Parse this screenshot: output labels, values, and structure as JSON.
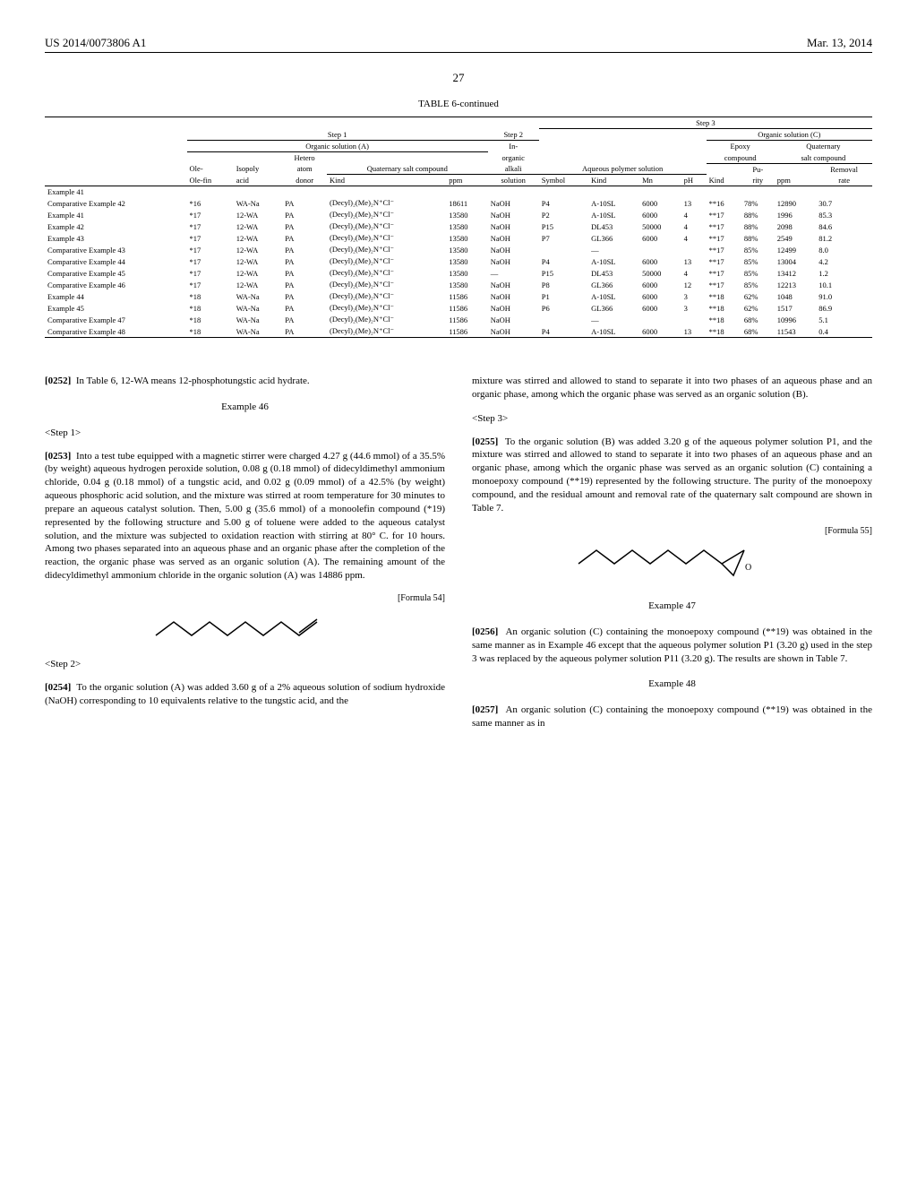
{
  "header": {
    "left": "US 2014/0073806 A1",
    "right": "Mar. 13, 2014"
  },
  "page_number": "27",
  "table": {
    "title": "TABLE 6-continued",
    "step1_label": "Step 1",
    "step2_label": "Step 2",
    "step3_label": "Step 3",
    "org_a_label": "Organic solution (A)",
    "org_c_label": "Organic solution (C)",
    "inorganic_label": "In-organic",
    "epoxy_label": "Epoxy compound",
    "quat_label": "Quaternary salt compound",
    "alkali_label": "alkali",
    "aqueous_label": "Aqueous polymer solution",
    "hetero_label": "Hetero atom",
    "quat_salt_label": "Quaternary salt compound",
    "col_olefin": "Ole-fin",
    "col_isopoly": "Isopoly acid",
    "col_donor": "donor",
    "col_kind1": "Kind",
    "col_ppm1": "ppm",
    "col_solution": "solution",
    "col_symbol": "Symbol",
    "col_kind2": "Kind",
    "col_mn": "Mn",
    "col_ph": "pH",
    "col_kind3": "Kind",
    "col_purity": "Pu-rity",
    "col_ppm2": "ppm",
    "col_removal": "Removal rate",
    "rows": [
      {
        "name": "Example 41",
        "olefin": "",
        "isopoly": "",
        "donor": "",
        "kind": "",
        "ppm": "",
        "sol": "",
        "sym": "",
        "kind2": "",
        "mn": "",
        "ph": "",
        "kind3": "",
        "purity": "",
        "ppm2": "",
        "removal": ""
      },
      {
        "name": "Comparative Example 42",
        "olefin": "*16",
        "isopoly": "WA-Na",
        "donor": "PA",
        "kind": "(Decyl)₂(Me)₂N⁺Cl⁻",
        "ppm": "18611",
        "sol": "NaOH",
        "sym": "P4",
        "kind2": "A-10SL",
        "mn": "6000",
        "ph": "13",
        "kind3": "**16",
        "purity": "78%",
        "ppm2": "12890",
        "removal": "30.7"
      },
      {
        "name": "Example 41",
        "olefin": "*17",
        "isopoly": "12-WA",
        "donor": "PA",
        "kind": "(Decyl)₂(Me)₂N⁺Cl⁻",
        "ppm": "13580",
        "sol": "NaOH",
        "sym": "P2",
        "kind2": "A-10SL",
        "mn": "6000",
        "ph": "4",
        "kind3": "**17",
        "purity": "88%",
        "ppm2": "1996",
        "removal": "85.3"
      },
      {
        "name": "Example 42",
        "olefin": "*17",
        "isopoly": "12-WA",
        "donor": "PA",
        "kind": "(Decyl)₂(Me)₂N⁺Cl⁻",
        "ppm": "13580",
        "sol": "NaOH",
        "sym": "P15",
        "kind2": "DL453",
        "mn": "50000",
        "ph": "4",
        "kind3": "**17",
        "purity": "88%",
        "ppm2": "2098",
        "removal": "84.6"
      },
      {
        "name": "Example 43",
        "olefin": "*17",
        "isopoly": "12-WA",
        "donor": "PA",
        "kind": "(Decyl)₂(Me)₂N⁺Cl⁻",
        "ppm": "13580",
        "sol": "NaOH",
        "sym": "P7",
        "kind2": "GL366",
        "mn": "6000",
        "ph": "4",
        "kind3": "**17",
        "purity": "88%",
        "ppm2": "2549",
        "removal": "81.2"
      },
      {
        "name": "Comparative Example 43",
        "olefin": "*17",
        "isopoly": "12-WA",
        "donor": "PA",
        "kind": "(Decyl)₂(Me)₂N⁺Cl⁻",
        "ppm": "13580",
        "sol": "NaOH",
        "sym": "",
        "kind2": "—",
        "mn": "",
        "ph": "",
        "kind3": "**17",
        "purity": "85%",
        "ppm2": "12499",
        "removal": "8.0"
      },
      {
        "name": "Comparative Example 44",
        "olefin": "*17",
        "isopoly": "12-WA",
        "donor": "PA",
        "kind": "(Decyl)₂(Me)₂N⁺Cl⁻",
        "ppm": "13580",
        "sol": "NaOH",
        "sym": "P4",
        "kind2": "A-10SL",
        "mn": "6000",
        "ph": "13",
        "kind3": "**17",
        "purity": "85%",
        "ppm2": "13004",
        "removal": "4.2"
      },
      {
        "name": "Comparative Example 45",
        "olefin": "*17",
        "isopoly": "12-WA",
        "donor": "PA",
        "kind": "(Decyl)₂(Me)₂N⁺Cl⁻",
        "ppm": "13580",
        "sol": "—",
        "sym": "P15",
        "kind2": "DL453",
        "mn": "50000",
        "ph": "4",
        "kind3": "**17",
        "purity": "85%",
        "ppm2": "13412",
        "removal": "1.2"
      },
      {
        "name": "Comparative Example 46",
        "olefin": "*17",
        "isopoly": "12-WA",
        "donor": "PA",
        "kind": "(Decyl)₂(Me)₂N⁺Cl⁻",
        "ppm": "13580",
        "sol": "NaOH",
        "sym": "P8",
        "kind2": "GL366",
        "mn": "6000",
        "ph": "12",
        "kind3": "**17",
        "purity": "85%",
        "ppm2": "12213",
        "removal": "10.1"
      },
      {
        "name": "Example 44",
        "olefin": "*18",
        "isopoly": "WA-Na",
        "donor": "PA",
        "kind": "(Decyl)₂(Me)₂N⁺Cl⁻",
        "ppm": "11586",
        "sol": "NaOH",
        "sym": "P1",
        "kind2": "A-10SL",
        "mn": "6000",
        "ph": "3",
        "kind3": "**18",
        "purity": "62%",
        "ppm2": "1048",
        "removal": "91.0"
      },
      {
        "name": "Example 45",
        "olefin": "*18",
        "isopoly": "WA-Na",
        "donor": "PA",
        "kind": "(Decyl)₂(Me)₂N⁺Cl⁻",
        "ppm": "11586",
        "sol": "NaOH",
        "sym": "P6",
        "kind2": "GL366",
        "mn": "6000",
        "ph": "3",
        "kind3": "**18",
        "purity": "62%",
        "ppm2": "1517",
        "removal": "86.9"
      },
      {
        "name": "Comparative Example 47",
        "olefin": "*18",
        "isopoly": "WA-Na",
        "donor": "PA",
        "kind": "(Decyl)₂(Me)₂N⁺Cl⁻",
        "ppm": "11586",
        "sol": "NaOH",
        "sym": "",
        "kind2": "—",
        "mn": "",
        "ph": "",
        "kind3": "**18",
        "purity": "68%",
        "ppm2": "10996",
        "removal": "5.1"
      },
      {
        "name": "Comparative Example 48",
        "olefin": "*18",
        "isopoly": "WA-Na",
        "donor": "PA",
        "kind": "(Decyl)₂(Me)₂N⁺Cl⁻",
        "ppm": "11586",
        "sol": "NaOH",
        "sym": "P4",
        "kind2": "A-10SL",
        "mn": "6000",
        "ph": "13",
        "kind3": "**18",
        "purity": "68%",
        "ppm2": "11543",
        "removal": "0.4"
      }
    ]
  },
  "left_col": {
    "p0252_num": "[0252]",
    "p0252": "In Table 6, 12-WA means 12-phosphotungstic acid hydrate.",
    "ex46": "Example 46",
    "step1": "<Step 1>",
    "p0253_num": "[0253]",
    "p0253": "Into a test tube equipped with a magnetic stirrer were charged 4.27 g (44.6 mmol) of a 35.5% (by weight) aqueous hydrogen peroxide solution, 0.08 g (0.18 mmol) of didecyldimethyl ammonium chloride, 0.04 g (0.18 mmol) of a tungstic acid, and 0.02 g (0.09 mmol) of a 42.5% (by weight) aqueous phosphoric acid solution, and the mixture was stirred at room temperature for 30 minutes to prepare an aqueous catalyst solution. Then, 5.00 g (35.6 mmol) of a monoolefin compound (*19) represented by the following structure and 5.00 g of toluene were added to the aqueous catalyst solution, and the mixture was subjected to oxidation reaction with stirring at 80° C. for 10 hours. Among two phases separated into an aqueous phase and an organic phase after the completion of the reaction, the organic phase was served as an organic solution (A). The remaining amount of the didecyldimethyl ammonium chloride in the organic solution (A) was 14886 ppm.",
    "formula54": "[Formula 54]",
    "step2": "<Step 2>",
    "p0254_num": "[0254]",
    "p0254": "To the organic solution (A) was added 3.60 g of a 2% aqueous solution of sodium hydroxide (NaOH) corresponding to 10 equivalents relative to the tungstic acid, and the"
  },
  "right_col": {
    "p_cont": "mixture was stirred and allowed to stand to separate it into two phases of an aqueous phase and an organic phase, among which the organic phase was served as an organic solution (B).",
    "step3": "<Step 3>",
    "p0255_num": "[0255]",
    "p0255": "To the organic solution (B) was added 3.20 g of the aqueous polymer solution P1, and the mixture was stirred and allowed to stand to separate it into two phases of an aqueous phase and an organic phase, among which the organic phase was served as an organic solution (C) containing a monoepoxy compound (**19) represented by the following structure. The purity of the monoepoxy compound, and the residual amount and removal rate of the quaternary salt compound are shown in Table 7.",
    "formula55": "[Formula 55]",
    "ex47": "Example 47",
    "p0256_num": "[0256]",
    "p0256": "An organic solution (C) containing the monoepoxy compound (**19) was obtained in the same manner as in Example 46 except that the aqueous polymer solution P1 (3.20 g) used in the step 3 was replaced by the aqueous polymer solution P11 (3.20 g). The results are shown in Table 7.",
    "ex48": "Example 48",
    "p0257_num": "[0257]",
    "p0257": "An organic solution (C) containing the monoepoxy compound (**19) was obtained in the same manner as in"
  }
}
